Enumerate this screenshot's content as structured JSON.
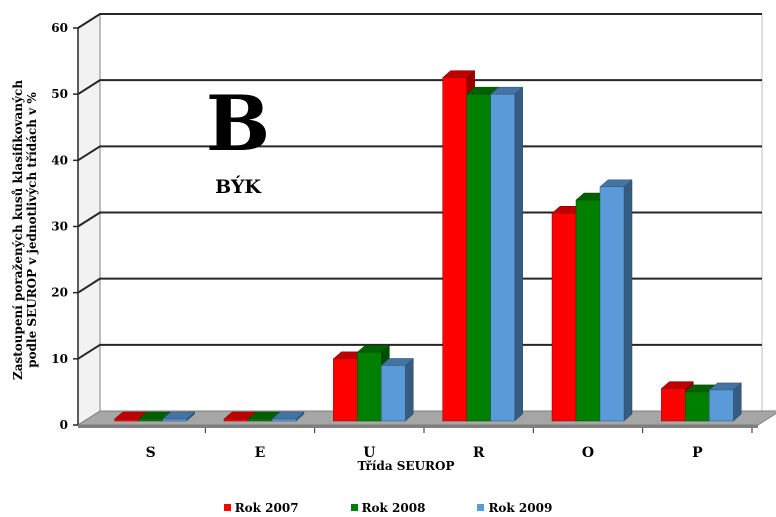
{
  "chart_data": {
    "type": "bar",
    "title": "B",
    "subtitle": "BÝK",
    "xlabel": "Třída SEUROP",
    "ylabel": "Zastoupení poražených kusů klasifikovaných podle SEUROP v jednotlivých třídách v %",
    "ylabel_lines": [
      "Zastoupení poražených kusů klasifikovaných",
      "podle SEUROP v jednotlivých třídách v %"
    ],
    "categories": [
      "S",
      "E",
      "U",
      "R",
      "O",
      "P"
    ],
    "ylim": [
      0,
      60
    ],
    "yticks": [
      "0",
      "10",
      "20",
      "30",
      "40",
      "50",
      "60"
    ],
    "grid": true,
    "legend_position": "bottom",
    "series": [
      {
        "name": "Rok 2007",
        "color": "#ff0000",
        "values": [
          0.1,
          0.2,
          10,
          52.5,
          32,
          5.5
        ]
      },
      {
        "name": "Rok 2008",
        "color": "#008000",
        "values": [
          0.1,
          0.2,
          11,
          50,
          34,
          5
        ]
      },
      {
        "name": "Rok 2009",
        "color": "#5a9ad9",
        "values": [
          0.1,
          0.2,
          9,
          50,
          36,
          5.3
        ]
      }
    ]
  }
}
